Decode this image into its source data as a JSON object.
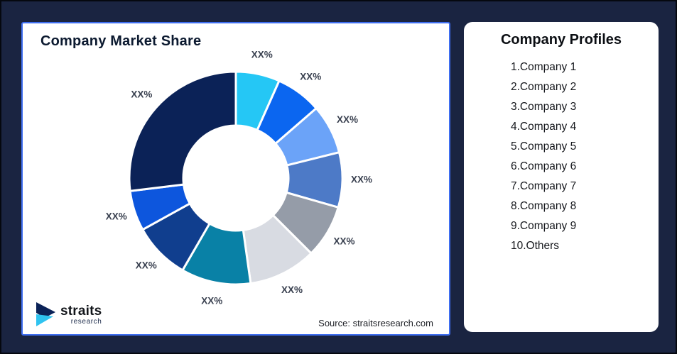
{
  "canvas": {
    "background_color": "#1a2441",
    "outer_border_color": "#05080f"
  },
  "chart_card": {
    "title": "Company Market Share",
    "source": "Source: straitsresearch.com",
    "border_color": "#3f6ef0",
    "background_color": "#ffffff"
  },
  "logo": {
    "brand": "straits",
    "sub": "research",
    "icon": "straits-arrow-icon",
    "icon_navy": "#0b2257",
    "icon_cyan": "#2fc3f0"
  },
  "profiles": {
    "title": "Company Profiles",
    "items": [
      "1.Company 1",
      "2.Company 2",
      "3.Company 3",
      "4.Company 4",
      "5.Company 5",
      "6.Company 6",
      "7.Company 7",
      "8.Company 8",
      "9.Company 9",
      "10.Others"
    ]
  },
  "chart_data": {
    "type": "pie",
    "subtype": "donut",
    "title": "Company Market Share",
    "start": "top",
    "direction": "clockwise",
    "inner_radius_ratio": 0.49,
    "label_color": "#3a4150",
    "slice_gap_color": "#ffffff",
    "slices": [
      {
        "label": "XX%",
        "angle_deg": 24,
        "share_pct_est": 6.7,
        "color": "#25c7f5"
      },
      {
        "label": "XX%",
        "angle_deg": 25,
        "share_pct_est": 6.9,
        "color": "#0b66f0"
      },
      {
        "label": "XX%",
        "angle_deg": 27,
        "share_pct_est": 7.5,
        "color": "#6ba3f8"
      },
      {
        "label": "XX%",
        "angle_deg": 30,
        "share_pct_est": 8.3,
        "color": "#4d7ac7"
      },
      {
        "label": "XX%",
        "angle_deg": 29,
        "share_pct_est": 8.1,
        "color": "#959ca8"
      },
      {
        "label": "XX%",
        "angle_deg": 37,
        "share_pct_est": 10.3,
        "color": "#d8dbe2"
      },
      {
        "label": "XX%",
        "angle_deg": 38,
        "share_pct_est": 10.6,
        "color": "#0981a6"
      },
      {
        "label": "XX%",
        "angle_deg": 31,
        "share_pct_est": 8.6,
        "color": "#103e8e"
      },
      {
        "label": "XX%",
        "angle_deg": 22,
        "share_pct_est": 6.1,
        "color": "#0d56dd"
      },
      {
        "label": "XX%",
        "angle_deg": 97,
        "share_pct_est": 26.9,
        "color": "#0b2257"
      }
    ]
  }
}
